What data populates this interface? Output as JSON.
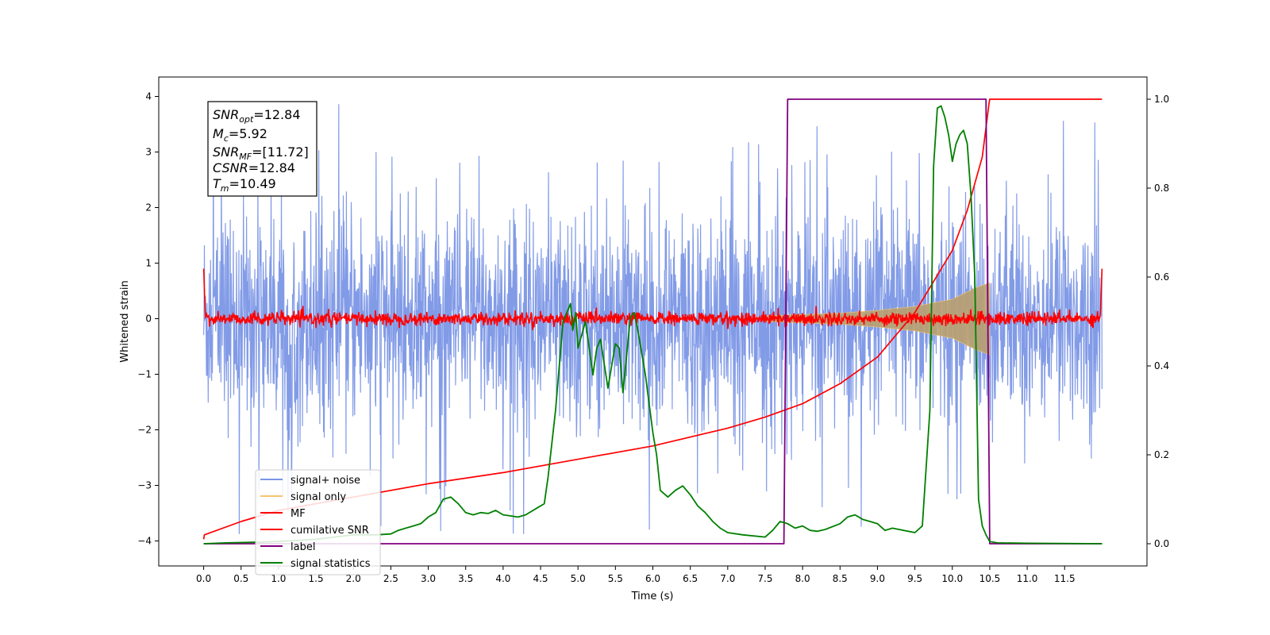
{
  "chart_data": {
    "type": "line",
    "xlabel": "Time (s)",
    "ylabel": "Whitened strain",
    "xlim": [
      -0.6,
      12.6
    ],
    "ylim_left": [
      -4.45,
      4.35
    ],
    "ylim_right": [
      -0.05,
      1.05
    ],
    "x_ticks": [
      "0.0",
      "0.5",
      "1.0",
      "1.5",
      "2.0",
      "2.5",
      "3.0",
      "3.5",
      "4.0",
      "4.5",
      "5.0",
      "5.5",
      "6.0",
      "6.5",
      "7.0",
      "7.5",
      "8.0",
      "8.5",
      "9.0",
      "9.5",
      "10.0",
      "10.5",
      "11.0",
      "11.5"
    ],
    "y_ticks_left": [
      "4",
      "3",
      "2",
      "1",
      "0",
      "−1",
      "−2",
      "−3",
      "−4"
    ],
    "y_ticks_right": [
      "1.0",
      "0.8",
      "0.6",
      "0.4",
      "0.2",
      "0.0"
    ],
    "grid": false,
    "legend_position": "lower-left",
    "annotation": {
      "snr_opt": "=12.84",
      "mc": "=5.92",
      "snr_mf": "=[11.72]",
      "csnr": "=12.84",
      "tm": "=10.49"
    },
    "series": [
      {
        "name": "signal+ noise",
        "color": "#7b96e6",
        "axis": "left",
        "description": "whitened noise, amplitude roughly ±2.5 with spikes to ~±4, 0 to 12 s"
      },
      {
        "name": "signal only",
        "color": "#f6c56f",
        "axis": "left",
        "envelope_t": [
          7.5,
          8.5,
          9.0,
          9.5,
          10.0,
          10.3,
          10.5
        ],
        "envelope_amp": [
          0.05,
          0.1,
          0.15,
          0.22,
          0.35,
          0.55,
          0.65
        ]
      },
      {
        "name": "MF",
        "color": "#ff0000",
        "axis": "left",
        "description": "matched filter output, amplitude ~±0.15 around 0"
      },
      {
        "name": "cumilative SNR",
        "color": "#ff0000",
        "axis": "right",
        "x": [
          0.0,
          0.01,
          0.5,
          1.0,
          2.0,
          3.0,
          4.0,
          5.0,
          6.0,
          7.0,
          7.5,
          8.0,
          8.5,
          9.0,
          9.5,
          10.0,
          10.2,
          10.4,
          10.49,
          10.5,
          12.0
        ],
        "y": [
          0.01,
          0.02,
          0.05,
          0.075,
          0.105,
          0.135,
          0.16,
          0.19,
          0.22,
          0.26,
          0.285,
          0.315,
          0.36,
          0.42,
          0.52,
          0.66,
          0.75,
          0.87,
          0.99,
          1.0,
          1.0
        ]
      },
      {
        "name": "label",
        "color": "#800080",
        "axis": "right",
        "x": [
          0.0,
          7.75,
          7.8,
          10.45,
          10.5,
          12.0
        ],
        "y": [
          0.0,
          0.0,
          1.0,
          1.0,
          0.0,
          0.0
        ]
      },
      {
        "name": "signal statistics",
        "color": "#008000",
        "axis": "right",
        "x": [
          0.0,
          0.3,
          0.6,
          1.0,
          1.5,
          2.0,
          2.3,
          2.5,
          2.6,
          2.8,
          2.9,
          3.0,
          3.1,
          3.2,
          3.3,
          3.4,
          3.5,
          3.6,
          3.7,
          3.8,
          3.9,
          4.0,
          4.2,
          4.3,
          4.45,
          4.55,
          4.6,
          4.7,
          4.8,
          4.9,
          4.93,
          4.97,
          5.0,
          5.1,
          5.2,
          5.25,
          5.3,
          5.4,
          5.5,
          5.55,
          5.6,
          5.7,
          5.75,
          5.8,
          5.9,
          6.0,
          6.05,
          6.1,
          6.2,
          6.3,
          6.4,
          6.5,
          6.6,
          6.7,
          6.8,
          6.9,
          7.0,
          7.2,
          7.5,
          7.6,
          7.7,
          7.8,
          7.9,
          8.0,
          8.1,
          8.2,
          8.3,
          8.5,
          8.6,
          8.7,
          8.8,
          9.0,
          9.1,
          9.2,
          9.5,
          9.6,
          9.7,
          9.75,
          9.8,
          9.85,
          9.9,
          9.95,
          10.0,
          10.05,
          10.1,
          10.15,
          10.2,
          10.25,
          10.3,
          10.35,
          10.4,
          10.45,
          10.5,
          10.6,
          11.0,
          12.0
        ],
        "y": [
          0.0,
          0.002,
          0.003,
          0.005,
          0.01,
          0.02,
          0.02,
          0.022,
          0.03,
          0.04,
          0.045,
          0.06,
          0.07,
          0.1,
          0.105,
          0.09,
          0.07,
          0.065,
          0.07,
          0.068,
          0.075,
          0.065,
          0.06,
          0.065,
          0.08,
          0.09,
          0.15,
          0.3,
          0.5,
          0.54,
          0.48,
          0.52,
          0.44,
          0.5,
          0.38,
          0.44,
          0.46,
          0.35,
          0.45,
          0.44,
          0.34,
          0.51,
          0.52,
          0.48,
          0.38,
          0.25,
          0.2,
          0.12,
          0.105,
          0.12,
          0.13,
          0.11,
          0.085,
          0.07,
          0.05,
          0.035,
          0.025,
          0.02,
          0.015,
          0.03,
          0.05,
          0.045,
          0.035,
          0.04,
          0.03,
          0.028,
          0.032,
          0.045,
          0.06,
          0.065,
          0.055,
          0.045,
          0.03,
          0.035,
          0.025,
          0.04,
          0.3,
          0.85,
          0.98,
          0.985,
          0.96,
          0.92,
          0.86,
          0.9,
          0.92,
          0.93,
          0.9,
          0.78,
          0.6,
          0.1,
          0.04,
          0.02,
          0.005,
          0.002,
          0.001,
          0.0
        ]
      }
    ]
  }
}
